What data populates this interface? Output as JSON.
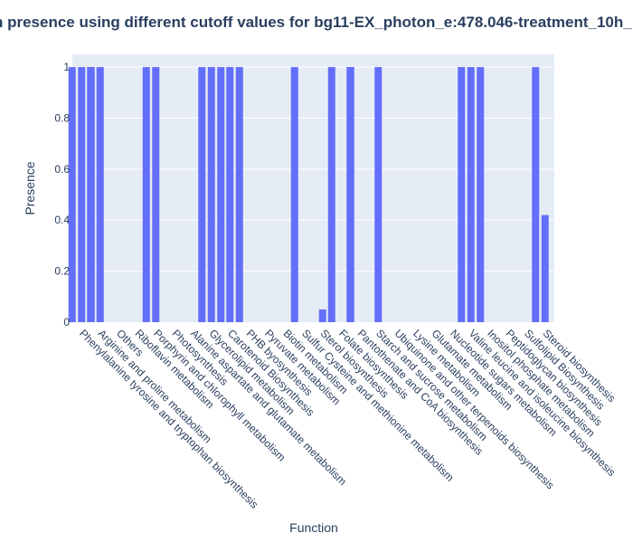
{
  "chart_data": {
    "type": "bar",
    "title": "n presence using different cutoff values for bg11-EX_photon_e:478.046-treatment_10h_",
    "xlabel": "Function",
    "ylabel": "Presence",
    "ylim": [
      0,
      1.05
    ],
    "yticks": [
      0,
      0.2,
      0.4,
      0.6,
      0.8,
      1
    ],
    "ytick_labels": [
      "0",
      "0.2",
      "0.4",
      "0.6",
      "0.8",
      "1"
    ],
    "grid": true,
    "bar_color": "#636efa",
    "plot_bg": "#e5ecf6",
    "text_color": "#2a3f5f",
    "categories": [
      "Phenylalanine tyrosine and tryptophan biosynthesis",
      "Arginine and proline metabolism",
      "Others",
      "Riboflavin metabolism",
      "Porphyrin and chlorophyll metabolism",
      "Photosynthesis",
      "Alanine aspartate and glutamate metabolism",
      "Glycerolipid metabolism",
      "Carotenoid Biosynthesis",
      "PHB byosynthesis",
      "Pyruvate metabolism",
      "Biotin metabolism",
      "Sulfur Cysteine and methionine metabolism",
      "Sterol biosynthesis",
      "Folate biosynthesis",
      "Pantothenate and CoA biosynthesis",
      "Starch and sucrose metabolism",
      "Ubiquinone and other terpenoids biosynthesis",
      "Lysine metabolism",
      "Glutamate metabolism",
      "Nucleotide sugars metabolism",
      "Valine leucine and isoleucine biosynthesis",
      "Inositol phosphate metabolism",
      "Peptidoglycan biosynthesis",
      "Sulfolipid Biosynthesis",
      "Steroid biosynthesis"
    ],
    "values": [
      [
        1,
        1,
        1
      ],
      [
        1,
        1,
        0
      ],
      [
        0,
        0,
        0
      ],
      [
        0,
        0,
        0
      ],
      [
        1,
        1,
        0
      ],
      [
        0,
        0,
        0
      ],
      [
        0,
        0,
        0
      ],
      [
        1,
        1,
        1
      ],
      [
        0,
        1,
        1
      ],
      [
        0,
        0,
        0
      ],
      [
        0,
        0,
        0
      ],
      [
        0,
        0,
        0
      ],
      [
        1,
        0,
        0
      ],
      [
        0,
        0.05,
        0
      ],
      [
        1,
        0,
        1
      ],
      [
        1,
        0,
        0
      ],
      [
        0,
        1,
        0
      ],
      [
        0,
        0,
        0
      ],
      [
        0,
        0,
        0
      ],
      [
        0,
        0,
        0
      ],
      [
        0,
        0,
        0
      ],
      [
        1,
        1,
        1
      ],
      [
        0,
        0,
        0
      ],
      [
        0,
        0,
        0
      ],
      [
        0,
        0,
        0
      ],
      [
        1,
        0.42,
        0
      ]
    ]
  }
}
